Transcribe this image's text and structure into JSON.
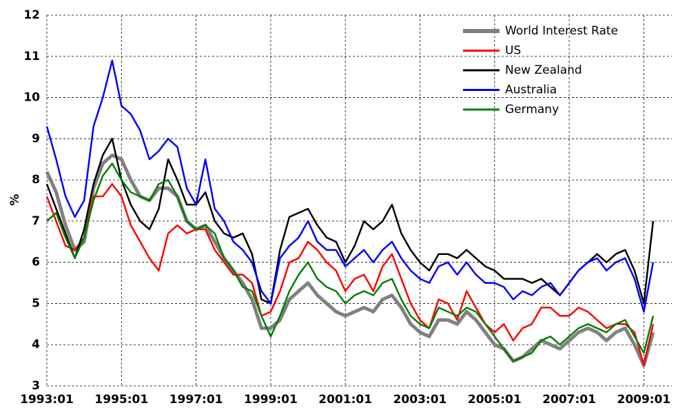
{
  "chart_data": {
    "type": "line",
    "ylabel": "%",
    "x": [
      "1993:01",
      "1993:04",
      "1993:07",
      "1993:10",
      "1994:01",
      "1994:04",
      "1994:07",
      "1994:10",
      "1995:01",
      "1995:04",
      "1995:07",
      "1995:10",
      "1996:01",
      "1996:04",
      "1996:07",
      "1996:10",
      "1997:01",
      "1997:04",
      "1997:07",
      "1997:10",
      "1998:01",
      "1998:04",
      "1998:07",
      "1998:10",
      "1999:01",
      "1999:04",
      "1999:07",
      "1999:10",
      "2000:01",
      "2000:04",
      "2000:07",
      "2000:10",
      "2001:01",
      "2001:04",
      "2001:07",
      "2001:10",
      "2002:01",
      "2002:04",
      "2002:07",
      "2002:10",
      "2003:01",
      "2003:04",
      "2003:07",
      "2003:10",
      "2004:01",
      "2004:04",
      "2004:07",
      "2004:10",
      "2005:01",
      "2005:04",
      "2005:07",
      "2005:10",
      "2006:01",
      "2006:04",
      "2006:07",
      "2006:10",
      "2007:01",
      "2007:04",
      "2007:07",
      "2007:10",
      "2008:01",
      "2008:04",
      "2008:07",
      "2008:10",
      "2009:01",
      "2009:04"
    ],
    "series": [
      {
        "name": "World Interest Rate",
        "color": "#808080",
        "values": [
          8.2,
          7.7,
          6.9,
          6.3,
          6.5,
          7.8,
          8.4,
          8.6,
          8.5,
          8.0,
          7.6,
          7.5,
          7.8,
          7.8,
          7.6,
          7.0,
          6.8,
          6.9,
          6.5,
          6.1,
          5.8,
          5.5,
          5.1,
          4.4,
          4.4,
          4.6,
          5.1,
          5.3,
          5.5,
          5.2,
          5.0,
          4.8,
          4.7,
          4.8,
          4.9,
          4.8,
          5.1,
          5.2,
          4.9,
          4.5,
          4.3,
          4.2,
          4.6,
          4.6,
          4.5,
          4.8,
          4.6,
          4.3,
          4.0,
          3.9,
          3.6,
          3.7,
          3.9,
          4.1,
          4.0,
          3.9,
          4.1,
          4.3,
          4.4,
          4.3,
          4.1,
          4.3,
          4.4,
          4.0,
          3.5,
          4.3
        ]
      },
      {
        "name": "US",
        "color": "#ff0000",
        "values": [
          7.6,
          7.0,
          6.4,
          6.3,
          6.6,
          7.6,
          7.6,
          7.9,
          7.6,
          6.9,
          6.5,
          6.1,
          5.8,
          6.7,
          6.9,
          6.7,
          6.8,
          6.8,
          6.3,
          6.0,
          5.7,
          5.7,
          5.5,
          4.7,
          4.8,
          5.3,
          6.0,
          6.1,
          6.5,
          6.3,
          6.0,
          5.8,
          5.3,
          5.6,
          5.7,
          5.3,
          5.9,
          6.2,
          5.6,
          5.0,
          4.6,
          4.4,
          5.1,
          5.0,
          4.6,
          5.3,
          4.9,
          4.5,
          4.3,
          4.5,
          4.1,
          4.4,
          4.5,
          4.9,
          4.9,
          4.7,
          4.7,
          4.9,
          4.8,
          4.6,
          4.4,
          4.5,
          4.5,
          4.3,
          3.5,
          4.5
        ]
      },
      {
        "name": "New Zealand",
        "color": "#000000",
        "values": [
          7.9,
          7.3,
          6.7,
          6.1,
          6.8,
          7.9,
          8.6,
          9.0,
          8.0,
          7.4,
          7.0,
          6.8,
          7.3,
          8.5,
          8.0,
          7.4,
          7.4,
          7.7,
          7.0,
          6.7,
          6.6,
          6.7,
          6.2,
          5.1,
          5.0,
          6.3,
          7.1,
          7.2,
          7.3,
          6.9,
          6.6,
          6.5,
          6.0,
          6.4,
          7.0,
          6.8,
          7.0,
          7.4,
          6.7,
          6.3,
          6.0,
          5.8,
          6.2,
          6.2,
          6.1,
          6.3,
          6.1,
          5.9,
          5.8,
          5.6,
          5.6,
          5.6,
          5.5,
          5.6,
          5.4,
          5.2,
          5.5,
          5.8,
          6.0,
          6.2,
          6.0,
          6.2,
          6.3,
          5.8,
          5.0,
          7.0
        ]
      },
      {
        "name": "Australia",
        "color": "#0000ff",
        "values": [
          9.3,
          8.5,
          7.6,
          7.1,
          7.5,
          9.3,
          10.0,
          10.9,
          9.8,
          9.6,
          9.2,
          8.5,
          8.7,
          9.0,
          8.8,
          7.8,
          7.4,
          8.5,
          7.3,
          7.0,
          6.5,
          6.3,
          6.0,
          5.3,
          5.0,
          6.1,
          6.4,
          6.6,
          7.0,
          6.5,
          6.3,
          6.3,
          5.9,
          6.1,
          6.3,
          6.0,
          6.3,
          6.5,
          6.1,
          5.8,
          5.6,
          5.5,
          5.9,
          6.0,
          5.7,
          6.0,
          5.7,
          5.5,
          5.5,
          5.4,
          5.1,
          5.3,
          5.2,
          5.4,
          5.5,
          5.2,
          5.5,
          5.8,
          6.0,
          6.1,
          5.8,
          6.0,
          6.1,
          5.6,
          4.8,
          6.0
        ]
      },
      {
        "name": "Germany",
        "color": "#008000",
        "values": [
          7.0,
          7.2,
          6.6,
          6.1,
          6.6,
          7.5,
          8.1,
          8.4,
          8.0,
          7.7,
          7.6,
          7.5,
          7.9,
          8.0,
          7.6,
          7.0,
          6.8,
          6.9,
          6.7,
          6.1,
          5.8,
          5.4,
          5.3,
          4.7,
          4.2,
          4.7,
          5.3,
          5.7,
          6.0,
          5.6,
          5.4,
          5.3,
          5.0,
          5.2,
          5.3,
          5.2,
          5.5,
          5.6,
          5.1,
          4.7,
          4.5,
          4.4,
          4.9,
          4.8,
          4.7,
          4.9,
          4.8,
          4.5,
          4.2,
          3.9,
          3.6,
          3.7,
          3.8,
          4.1,
          4.2,
          4.0,
          4.2,
          4.4,
          4.5,
          4.4,
          4.3,
          4.5,
          4.6,
          4.2,
          3.8,
          4.7
        ]
      }
    ],
    "xlim": [
      "1993:01",
      "2009:10"
    ],
    "xticks": [
      "1993:01",
      "1995:01",
      "1997:01",
      "1999:01",
      "2001:01",
      "2003:01",
      "2005:01",
      "2007:01",
      "2009:01"
    ],
    "ylim": [
      3,
      12
    ],
    "yticks": [
      3,
      4,
      5,
      6,
      7,
      8,
      9,
      10,
      11,
      12
    ],
    "grid": true,
    "legend": "upper-right"
  }
}
